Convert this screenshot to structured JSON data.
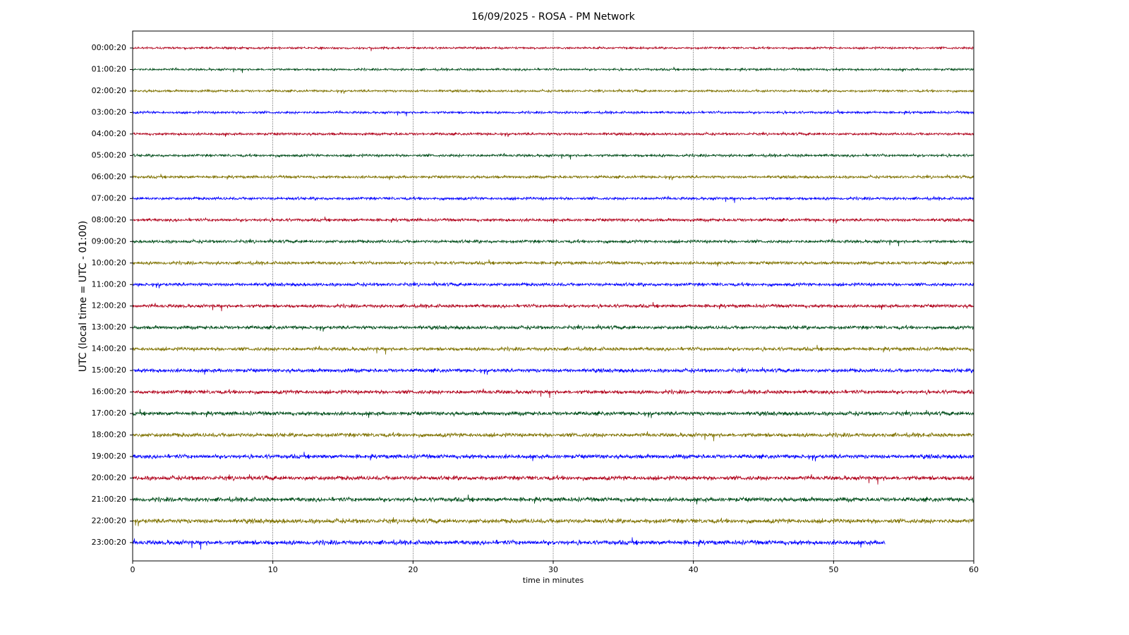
{
  "chart_data": {
    "type": "helicorder",
    "title": "16/09/2025 - ROSA - PM Network",
    "x_label": "time in minutes",
    "y_label": "UTC (local time = UTC - 01:00)",
    "categories": [
      "00:00:20",
      "01:00:20",
      "02:00:20",
      "03:00:20",
      "04:00:20",
      "05:00:20",
      "06:00:20",
      "07:00:20",
      "08:00:20",
      "09:00:20",
      "10:00:20",
      "11:00:20",
      "12:00:20",
      "13:00:20",
      "14:00:20",
      "15:00:20",
      "16:00:20",
      "17:00:20",
      "18:00:20",
      "19:00:20",
      "20:00:20",
      "21:00:20",
      "22:00:20",
      "23:00:20"
    ],
    "values": [
      60,
      60,
      60,
      60,
      60,
      60,
      60,
      60,
      60,
      60,
      60,
      60,
      60,
      60,
      60,
      60,
      60,
      60,
      60,
      60,
      60,
      60,
      60,
      53.7
    ],
    "colors": [
      "#b0001a",
      "#004d1a",
      "#7f7200",
      "#0000ff"
    ],
    "xlim": [
      0,
      60
    ],
    "xticks": [
      0,
      10,
      20,
      30,
      40,
      50,
      60
    ],
    "grid": true
  }
}
